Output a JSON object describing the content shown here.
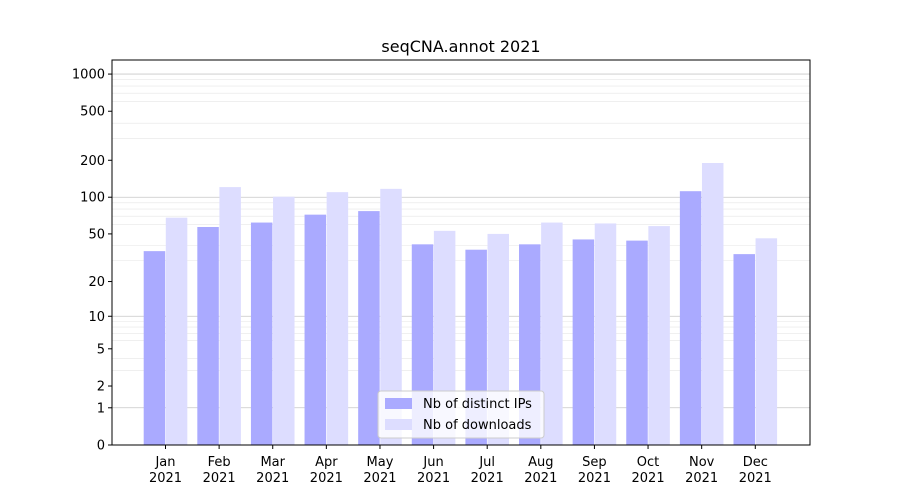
{
  "chart_data": {
    "type": "bar",
    "title": "seqCNA.annot 2021",
    "xlabel": "",
    "ylabel": "",
    "yscale": "log(1+y)",
    "ylim": [
      0,
      1300
    ],
    "yticks": [
      0,
      1,
      2,
      5,
      10,
      20,
      50,
      100,
      200,
      500,
      1000
    ],
    "ytick_labels": [
      "0",
      "1",
      "2",
      "5",
      "10",
      "20",
      "50",
      "100",
      "200",
      "500",
      "1000"
    ],
    "grid": true,
    "legend_position": "lower-center",
    "categories": [
      "Jan",
      "Feb",
      "Mar",
      "Apr",
      "May",
      "Jun",
      "Jul",
      "Aug",
      "Sep",
      "Oct",
      "Nov",
      "Dec"
    ],
    "category_years": [
      "2021",
      "2021",
      "2021",
      "2021",
      "2021",
      "2021",
      "2021",
      "2021",
      "2021",
      "2021",
      "2021",
      "2021"
    ],
    "series": [
      {
        "name": "Nb of distinct IPs",
        "color": "#aaaaff",
        "values": [
          36,
          57,
          62,
          72,
          77,
          41,
          37,
          41,
          45,
          44,
          112,
          34
        ]
      },
      {
        "name": "Nb of downloads",
        "color": "#ddddff",
        "values": [
          68,
          121,
          101,
          110,
          117,
          53,
          50,
          62,
          61,
          58,
          190,
          46
        ]
      }
    ]
  }
}
